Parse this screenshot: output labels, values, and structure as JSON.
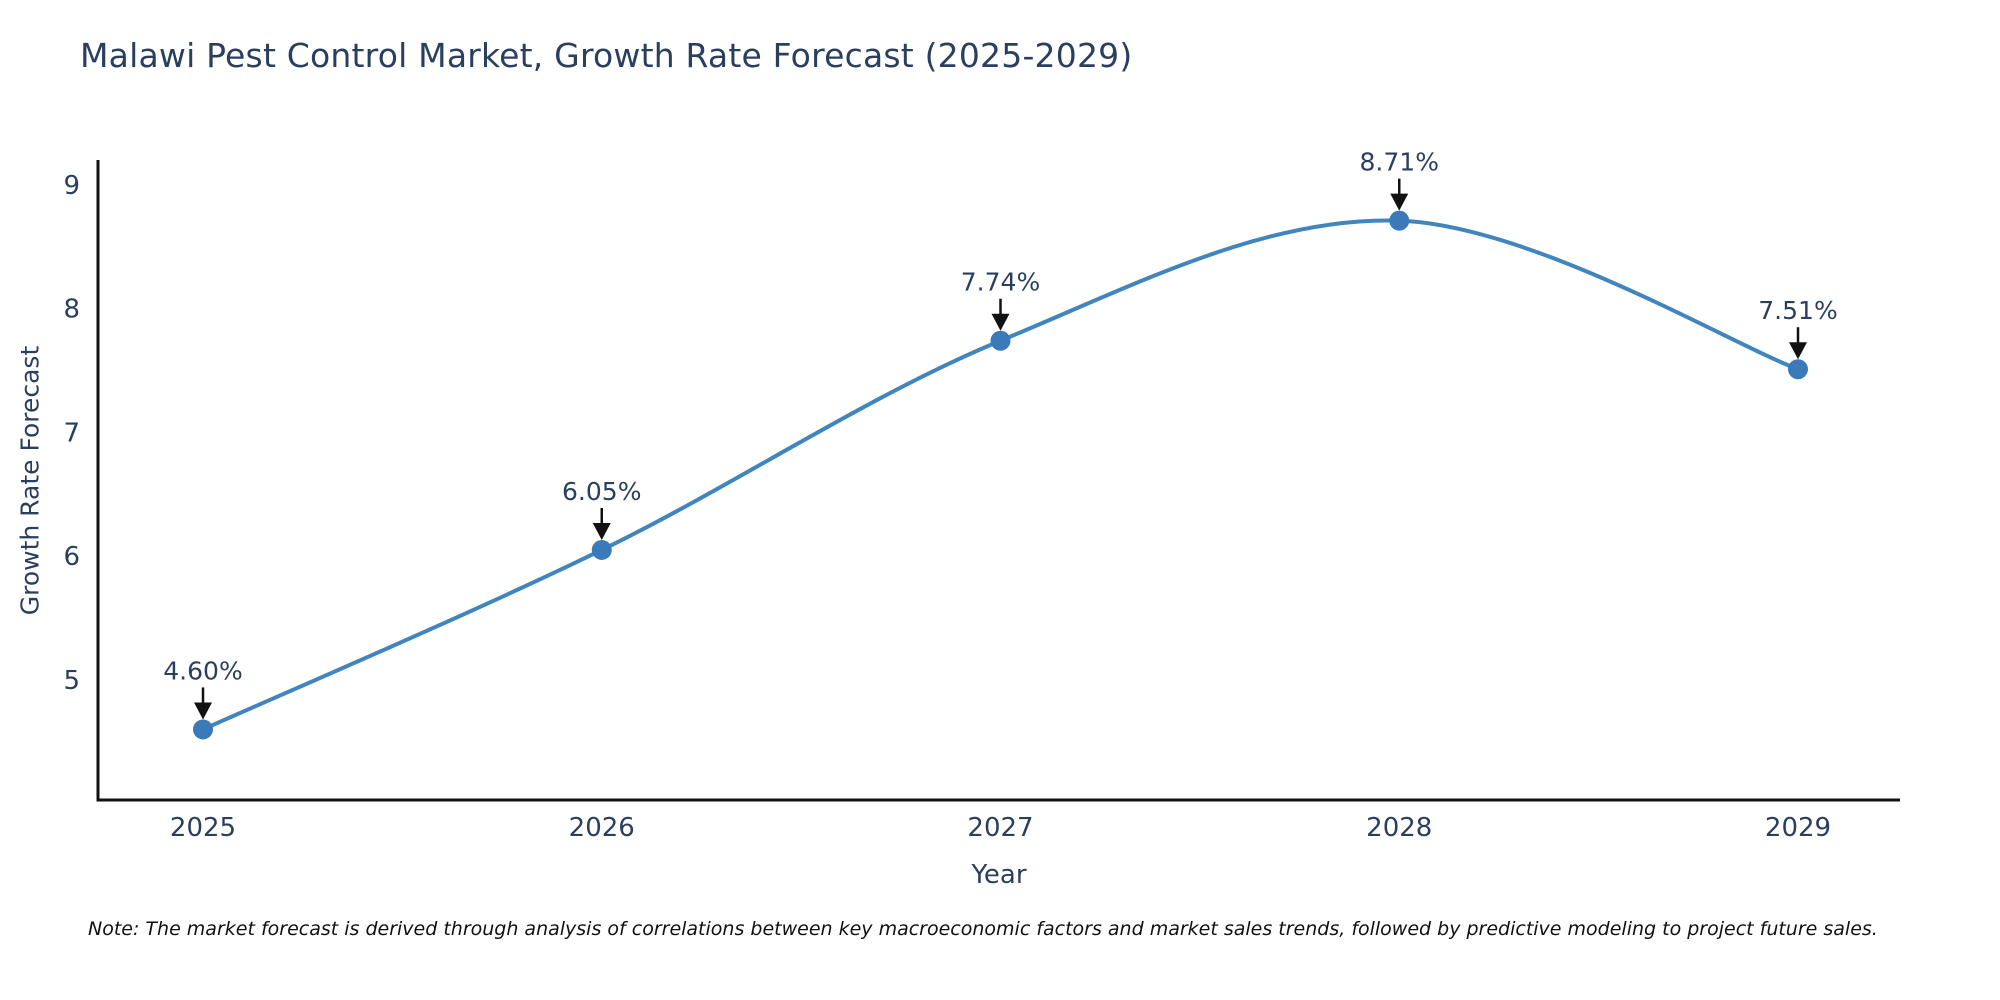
{
  "title": "Malawi Pest Control Market, Growth Rate Forecast (2025-2029)",
  "note": "Note: The market forecast is derived through analysis of correlations between key macroeconomic factors and market sales trends, followed by predictive modeling to project future sales.",
  "chart_data": {
    "type": "line",
    "title": "Malawi Pest Control Market, Growth Rate Forecast (2025-2029)",
    "xlabel": "Year",
    "ylabel": "Growth Rate Forecast",
    "categories": [
      "2025",
      "2026",
      "2027",
      "2028",
      "2029"
    ],
    "values": [
      4.6,
      6.05,
      7.74,
      8.71,
      7.51
    ],
    "point_labels": [
      "4.60%",
      "6.05%",
      "7.74%",
      "8.71%",
      "7.51%"
    ],
    "yticks": [
      5,
      6,
      7,
      8,
      9
    ],
    "ylim": [
      4.03,
      9.2
    ],
    "line_shape": "spline",
    "grid": false,
    "legend": false,
    "colors": {
      "line": "#4185be",
      "marker": "#3b7ab8",
      "axis": "#111111",
      "tick_text": "#2a3f5f",
      "annotation_text": "#2a3f5f",
      "arrow": "#111111",
      "background": "#ffffff"
    }
  }
}
